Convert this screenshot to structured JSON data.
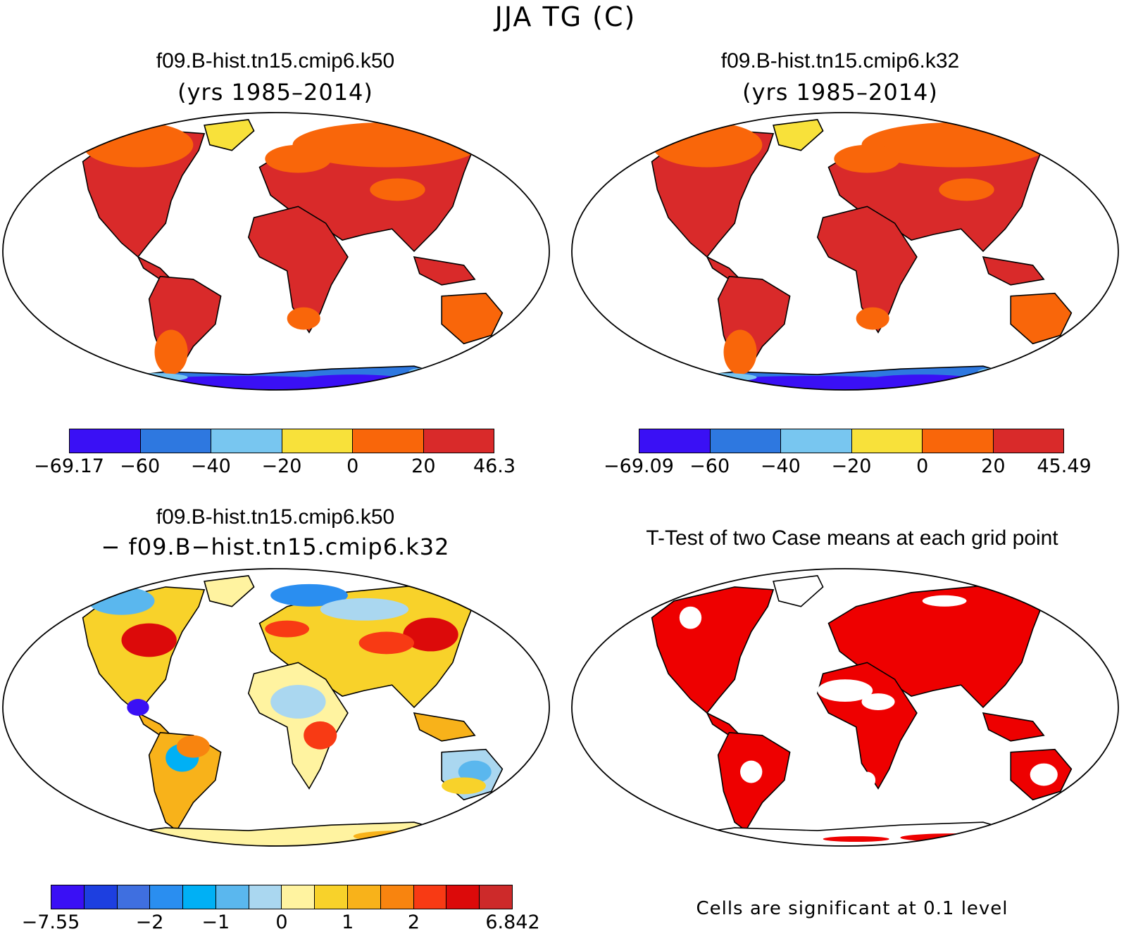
{
  "figure_title": "JJA TG (C)",
  "chart_data": [
    {
      "type": "heatmap",
      "title": "f09.B-hist.tn15.cmip6.k50",
      "subtitle": "(yrs 1985–2014)",
      "colorbar": {
        "labels": [
          "−69.17",
          "−60",
          "−40",
          "−20",
          "0",
          "20",
          "46.3"
        ],
        "colors": [
          "#3a10f5",
          "#2e78e0",
          "#78c6f0",
          "#f8e13a",
          "#f9660a",
          "#d92a2a"
        ]
      },
      "land_color_by_region": {
        "tropics": "#d92a2a",
        "northern_high_lat": "#f9660a",
        "greenland": "#f8e13a",
        "antarctica": [
          "#2e78e0",
          "#3a10f5",
          "#78c6f0"
        ]
      }
    },
    {
      "type": "heatmap",
      "title": "f09.B-hist.tn15.cmip6.k32",
      "subtitle": "(yrs 1985–2014)",
      "colorbar": {
        "labels": [
          "−69.09",
          "−60",
          "−40",
          "−20",
          "0",
          "20",
          "45.49"
        ],
        "colors": [
          "#3a10f5",
          "#2e78e0",
          "#78c6f0",
          "#f8e13a",
          "#f9660a",
          "#d92a2a"
        ]
      },
      "land_color_by_region": {
        "tropics": "#d92a2a",
        "northern_high_lat": "#f9660a",
        "greenland": "#f8e13a",
        "antarctica": [
          "#2e78e0",
          "#3a10f5",
          "#78c6f0"
        ]
      }
    },
    {
      "type": "heatmap",
      "title": "f09.B-hist.tn15.cmip6.k50",
      "subtitle": "− f09.B−hist.tn15.cmip6.k32",
      "colorbar": {
        "labels": [
          "−7.55",
          "",
          "",
          "−2",
          "",
          "−1",
          "",
          "0",
          "",
          "1",
          "",
          "2",
          "",
          "",
          "6.842"
        ],
        "colors": [
          "#3a10f5",
          "#1d3fe0",
          "#3f6fe0",
          "#2a8ef0",
          "#00b0f5",
          "#5ab7ee",
          "#aad7f0",
          "#fff3a0",
          "#f8d22a",
          "#f8b21a",
          "#f8840f",
          "#f83a14",
          "#dc0a0a",
          "#cd2a2a"
        ]
      }
    },
    {
      "type": "heatmap",
      "title": "T-Test of two Case means at each grid point",
      "note": "Cells are significant at 0.1 level",
      "significant_color": "#ee0000"
    }
  ]
}
